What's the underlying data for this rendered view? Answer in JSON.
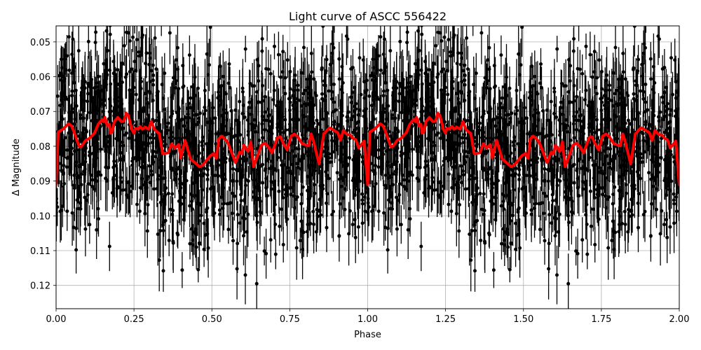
{
  "chart_data": {
    "type": "scatter",
    "title": "Light curve of ASCC 556422",
    "xlabel": "Phase",
    "ylabel": "Δ Magnitude",
    "xlim": [
      0.0,
      2.0
    ],
    "ylim": [
      0.1267,
      0.0454
    ],
    "y_inverted": true,
    "grid": true,
    "legend": null,
    "xticks": [
      0.0,
      0.25,
      0.5,
      0.75,
      1.0,
      1.25,
      1.5,
      1.75,
      2.0
    ],
    "xtick_labels": [
      "0.00",
      "0.25",
      "0.50",
      "0.75",
      "1.00",
      "1.25",
      "1.50",
      "1.75",
      "2.00"
    ],
    "yticks": [
      0.05,
      0.06,
      0.07,
      0.08,
      0.09,
      0.1,
      0.11,
      0.12
    ],
    "ytick_labels": [
      "0.05",
      "0.06",
      "0.07",
      "0.08",
      "0.09",
      "0.10",
      "0.11",
      "0.12"
    ],
    "series": [
      {
        "name": "observations",
        "kind": "errorbar-scatter",
        "color": "#000000",
        "description": "Dense phase-folded photometry with vertical error bars, repeated over two cycles",
        "approx_count_per_cycle": 1400,
        "mean": 0.082,
        "scatter_sd": 0.013,
        "typical_error": 0.006
      },
      {
        "name": "smoothed model",
        "kind": "line",
        "color": "#ff0000",
        "linewidth": 4,
        "phase": [
          0.0,
          0.007,
          0.022,
          0.04,
          0.049,
          0.056,
          0.074,
          0.081,
          0.095,
          0.108,
          0.124,
          0.135,
          0.148,
          0.153,
          0.157,
          0.164,
          0.171,
          0.175,
          0.18,
          0.187,
          0.198,
          0.209,
          0.218,
          0.225,
          0.232,
          0.243,
          0.25,
          0.254,
          0.263,
          0.27,
          0.277,
          0.286,
          0.297,
          0.306,
          0.315,
          0.324,
          0.331,
          0.342,
          0.36,
          0.371,
          0.382,
          0.394,
          0.4,
          0.414,
          0.432,
          0.461,
          0.472,
          0.495,
          0.506,
          0.515,
          0.522,
          0.531,
          0.54,
          0.551,
          0.576,
          0.589,
          0.596,
          0.603,
          0.616,
          0.625,
          0.634,
          0.634,
          0.659,
          0.67,
          0.681,
          0.693,
          0.711,
          0.72,
          0.729,
          0.742,
          0.754,
          0.765,
          0.776,
          0.79,
          0.811,
          0.819,
          0.826,
          0.844,
          0.859,
          0.877,
          0.886,
          0.904,
          0.913,
          0.922,
          0.935,
          0.944,
          0.953,
          0.962,
          0.971,
          0.989,
          1.0
        ],
        "magnitude": [
          0.0911,
          0.0759,
          0.0751,
          0.0735,
          0.0741,
          0.0755,
          0.0801,
          0.0801,
          0.0783,
          0.0777,
          0.0761,
          0.0737,
          0.0723,
          0.0729,
          0.0717,
          0.0741,
          0.0737,
          0.0763,
          0.0759,
          0.0729,
          0.0717,
          0.0729,
          0.0727,
          0.0705,
          0.0711,
          0.0751,
          0.0763,
          0.0749,
          0.0751,
          0.0743,
          0.0751,
          0.0745,
          0.0751,
          0.0729,
          0.0751,
          0.0759,
          0.0763,
          0.0821,
          0.0819,
          0.0793,
          0.0805,
          0.0795,
          0.0833,
          0.0783,
          0.0837,
          0.0859,
          0.0853,
          0.0827,
          0.0821,
          0.0835,
          0.0779,
          0.0771,
          0.0777,
          0.0789,
          0.0847,
          0.0817,
          0.0821,
          0.0797,
          0.0815,
          0.0787,
          0.0859,
          0.0859,
          0.0797,
          0.0791,
          0.0801,
          0.0819,
          0.0775,
          0.0773,
          0.0791,
          0.0811,
          0.0771,
          0.0765,
          0.0773,
          0.0793,
          0.0799,
          0.0765,
          0.0785,
          0.0851,
          0.0765,
          0.0747,
          0.0751,
          0.0761,
          0.0783,
          0.0755,
          0.0767,
          0.0767,
          0.0777,
          0.0781,
          0.0805,
          0.0785,
          0.0911
        ]
      }
    ]
  }
}
